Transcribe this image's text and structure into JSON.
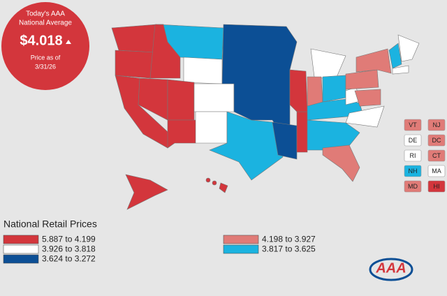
{
  "badge": {
    "line1": "Today's AAA",
    "line2": "National Average",
    "price": "$4.018",
    "line3": "Price as of",
    "date": "3/31/26"
  },
  "legend": {
    "title": "National Retail Prices",
    "items": [
      {
        "label": "5.887 to 4.199",
        "color": "#d3363c"
      },
      {
        "label": "3.926 to 3.818",
        "color": "#ffffff"
      },
      {
        "label": "3.624 to 3.272",
        "color": "#0c4f95"
      },
      {
        "label": "4.198 to 3.927",
        "color": "#e07b77"
      },
      {
        "label": "3.817 to 3.625",
        "color": "#1bb3e0"
      }
    ]
  },
  "small_states": [
    {
      "label": "VT",
      "color": "#e07b77"
    },
    {
      "label": "NJ",
      "color": "#e07b77"
    },
    {
      "label": "DE",
      "color": "#ffffff"
    },
    {
      "label": "DC",
      "color": "#e07b77"
    },
    {
      "label": "RI",
      "color": "#ffffff"
    },
    {
      "label": "CT",
      "color": "#e07b77"
    },
    {
      "label": "NH",
      "color": "#1bb3e0"
    },
    {
      "label": "MA",
      "color": "#ffffff"
    },
    {
      "label": "MD",
      "color": "#e07b77"
    },
    {
      "label": "HI",
      "color": "#d3363c"
    }
  ],
  "logo": "AAA"
}
